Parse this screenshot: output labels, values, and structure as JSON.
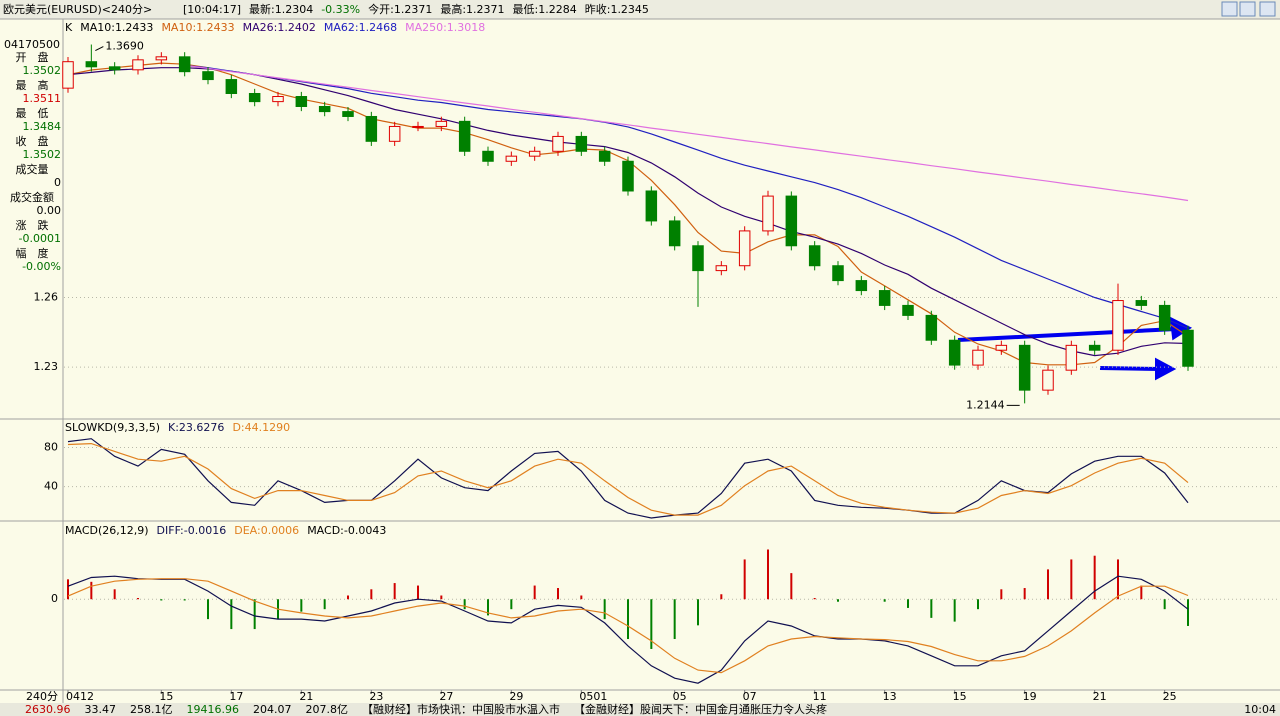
{
  "header": {
    "title": "欧元美元(EURUSD)<240分>",
    "fields": [
      "[10:04:17]",
      "最新:1.2304",
      "-0.33%",
      "今开:1.2371",
      "最高:1.2371",
      "最低:1.2284",
      "昨收:1.2345"
    ]
  },
  "side_panel": {
    "time": "04170500",
    "items": [
      {
        "label": "开　盘",
        "value": "1.3502",
        "color": "#007000"
      },
      {
        "label": "最　高",
        "value": "1.3511",
        "color": "#d00000"
      },
      {
        "label": "最　低",
        "value": "1.3484",
        "color": "#007000"
      },
      {
        "label": "收　盘",
        "value": "1.3502",
        "color": "#007000"
      },
      {
        "label": "成交量",
        "value": "0",
        "color": "#000000"
      },
      {
        "label": "成交金额",
        "value": "0.00",
        "color": "#000000"
      },
      {
        "label": "涨　跌",
        "value": "-0.0001",
        "color": "#007000"
      },
      {
        "label": "幅　度",
        "value": "-0.00%",
        "color": "#007000"
      }
    ]
  },
  "status_bar": {
    "items": [
      "2630.96",
      "33.47",
      "258.1亿",
      "19416.96",
      "204.07",
      "207.8亿",
      "【融财经】市场快讯：中国股市水温入市",
      "【金融财经】股闻天下：中国金月通胀压力令人头疼"
    ],
    "time": "10:04"
  },
  "chart_data": [
    {
      "type": "candlestick",
      "title": "K",
      "subtitle": "MA10:1.2433",
      "xlabel": "240分",
      "categories": [
        "0412",
        null,
        null,
        null,
        "15",
        null,
        null,
        "17",
        null,
        null,
        "21",
        null,
        null,
        "23",
        null,
        null,
        "27",
        null,
        null,
        "29",
        null,
        null,
        "0501",
        null,
        null,
        null,
        "05",
        null,
        null,
        "07",
        null,
        null,
        "11",
        null,
        null,
        "13",
        null,
        null,
        "15",
        null,
        null,
        "19",
        null,
        null,
        "21",
        null,
        null,
        "25",
        null
      ],
      "open": [
        1.3502,
        1.3616,
        1.3594,
        1.3581,
        1.3624,
        1.3637,
        1.3573,
        1.3539,
        1.3479,
        1.3444,
        1.3466,
        1.3423,
        1.3401,
        1.338,
        1.3273,
        1.3337,
        1.3337,
        1.3359,
        1.323,
        1.3187,
        1.3209,
        1.323,
        1.3294,
        1.323,
        1.3187,
        1.3059,
        1.293,
        1.2823,
        1.2716,
        1.2737,
        1.2887,
        1.3037,
        1.2823,
        1.2737,
        1.2673,
        1.263,
        1.2566,
        1.2523,
        1.2416,
        1.2309,
        1.2373,
        1.2394,
        1.2201,
        1.2287,
        1.2394,
        1.2373,
        1.2587,
        1.2566,
        1.2459
      ],
      "high": [
        1.3636,
        1.369,
        1.3614,
        1.3644,
        1.3657,
        1.3657,
        1.3593,
        1.3559,
        1.3499,
        1.3486,
        1.3486,
        1.3443,
        1.3421,
        1.34,
        1.3357,
        1.3357,
        1.3379,
        1.3379,
        1.325,
        1.3229,
        1.325,
        1.3314,
        1.3314,
        1.325,
        1.3207,
        1.3079,
        1.295,
        1.2843,
        1.2757,
        1.2907,
        1.306,
        1.3057,
        1.2843,
        1.2757,
        1.2693,
        1.265,
        1.2586,
        1.2543,
        1.2436,
        1.2393,
        1.2414,
        1.2414,
        1.2307,
        1.2414,
        1.2414,
        1.266,
        1.2607,
        1.2586,
        1.2479
      ],
      "low": [
        1.3482,
        1.3574,
        1.3561,
        1.3561,
        1.3604,
        1.3553,
        1.3519,
        1.3459,
        1.3424,
        1.3424,
        1.3403,
        1.3381,
        1.336,
        1.3253,
        1.3253,
        1.3317,
        1.3317,
        1.321,
        1.3167,
        1.3167,
        1.3189,
        1.321,
        1.321,
        1.3167,
        1.3039,
        1.291,
        1.2803,
        1.256,
        1.2696,
        1.2717,
        1.2867,
        1.2803,
        1.2717,
        1.2653,
        1.261,
        1.2546,
        1.2503,
        1.2396,
        1.2289,
        1.2289,
        1.2353,
        1.2144,
        1.2181,
        1.2267,
        1.2353,
        1.2353,
        1.2546,
        1.2439,
        1.2284
      ],
      "close": [
        1.3616,
        1.3594,
        1.3581,
        1.3624,
        1.3637,
        1.3573,
        1.3539,
        1.3479,
        1.3444,
        1.3466,
        1.3423,
        1.3401,
        1.338,
        1.3273,
        1.3337,
        1.3337,
        1.3359,
        1.323,
        1.3187,
        1.3209,
        1.323,
        1.3294,
        1.323,
        1.3187,
        1.3059,
        1.293,
        1.2823,
        1.2716,
        1.2737,
        1.2887,
        1.3037,
        1.2823,
        1.2737,
        1.2673,
        1.263,
        1.2566,
        1.2523,
        1.2416,
        1.2309,
        1.2373,
        1.2394,
        1.2201,
        1.2287,
        1.2394,
        1.2373,
        1.2587,
        1.2566,
        1.2459,
        1.2304
      ],
      "up_color": "#e00000",
      "down_color": "#008000",
      "series": [
        {
          "name": "MA10:1.2433",
          "color": "#d06010",
          "values": [
            1.356,
            1.358,
            1.359,
            1.36,
            1.361,
            1.3605,
            1.359,
            1.356,
            1.352,
            1.348,
            1.3455,
            1.3435,
            1.3415,
            1.337,
            1.335,
            1.333,
            1.333,
            1.331,
            1.328,
            1.3245,
            1.3215,
            1.3225,
            1.324,
            1.3235,
            1.319,
            1.3105,
            1.3,
            1.288,
            1.28,
            1.279,
            1.284,
            1.287,
            1.287,
            1.282,
            1.271,
            1.265,
            1.259,
            1.253,
            1.245,
            1.24,
            1.237,
            1.232,
            1.231,
            1.231,
            1.232,
            1.239,
            1.248,
            1.25,
            1.2433
          ]
        },
        {
          "name": "MA26:1.2402",
          "color": "#300070",
          "values": [
            1.356,
            1.357,
            1.358,
            1.3585,
            1.359,
            1.359,
            1.3585,
            1.3575,
            1.356,
            1.354,
            1.352,
            1.3495,
            1.347,
            1.344,
            1.341,
            1.339,
            1.337,
            1.3345,
            1.332,
            1.33,
            1.3285,
            1.327,
            1.326,
            1.325,
            1.3225,
            1.318,
            1.312,
            1.305,
            1.299,
            1.295,
            1.292,
            1.2885,
            1.286,
            1.283,
            1.279,
            1.274,
            1.27,
            1.264,
            1.259,
            1.254,
            1.249,
            1.244,
            1.24,
            1.237,
            1.235,
            1.236,
            1.239,
            1.2405,
            1.2402
          ]
        },
        {
          "name": "MA62:1.2468",
          "color": "#2020c0",
          "values": [
            null,
            null,
            null,
            null,
            null,
            1.36,
            1.359,
            1.3575,
            1.356,
            1.3545,
            1.353,
            1.3515,
            1.35,
            1.348,
            1.3465,
            1.345,
            1.344,
            1.3425,
            1.341,
            1.34,
            1.339,
            1.338,
            1.337,
            1.3355,
            1.3335,
            1.3305,
            1.327,
            1.3235,
            1.32,
            1.317,
            1.3145,
            1.312,
            1.3095,
            1.3065,
            1.303,
            1.299,
            1.295,
            1.2905,
            1.286,
            1.281,
            1.276,
            1.272,
            1.268,
            1.264,
            1.26,
            1.257,
            1.254,
            1.251,
            1.2468
          ]
        },
        {
          "name": "MA250:1.3018",
          "color": "#e070e0",
          "values": [
            null,
            null,
            null,
            null,
            null,
            1.36,
            1.3587,
            1.3573,
            1.356,
            1.3546,
            1.3533,
            1.3519,
            1.3506,
            1.3492,
            1.3479,
            1.3465,
            1.3452,
            1.3438,
            1.3425,
            1.3411,
            1.3398,
            1.3384,
            1.3371,
            1.3357,
            1.3344,
            1.333,
            1.3317,
            1.3303,
            1.329,
            1.3276,
            1.3263,
            1.3249,
            1.3236,
            1.3222,
            1.3209,
            1.3195,
            1.3182,
            1.3168,
            1.3155,
            1.3141,
            1.3128,
            1.3114,
            1.3101,
            1.3087,
            1.3074,
            1.306,
            1.3047,
            1.3033,
            1.3018
          ]
        }
      ],
      "annotations": [
        "1.3690",
        "1.2144"
      ],
      "ylim": [
        1.2081,
        1.3787
      ],
      "yticks": [
        1.26,
        1.23
      ],
      "grid": true
    },
    {
      "type": "line",
      "title": "SLOWKD(9,3,3,5)",
      "series": [
        {
          "name": "K:23.6276",
          "color": "#101050",
          "values": [
            86,
            89,
            71,
            61,
            78,
            73,
            46,
            24,
            21,
            46,
            36,
            24,
            26,
            26,
            46,
            68,
            49,
            39,
            36,
            56,
            74,
            76,
            56,
            26,
            13,
            8,
            11,
            13,
            33,
            64,
            68,
            56,
            26,
            21,
            19,
            18,
            16,
            13,
            13,
            26,
            46,
            36,
            34,
            53,
            66,
            71,
            71,
            54,
            23.6276
          ]
        },
        {
          "name": "D:44.1290",
          "color": "#e08020",
          "values": [
            83,
            84,
            76,
            68,
            66,
            71,
            58,
            38,
            28,
            36,
            36,
            31,
            26,
            26,
            34,
            51,
            56,
            46,
            39,
            46,
            61,
            68,
            64,
            46,
            29,
            16,
            11,
            11,
            21,
            41,
            56,
            61,
            46,
            31,
            23,
            19,
            16,
            14,
            13,
            18,
            31,
            36,
            33,
            41,
            54,
            64,
            69,
            64,
            44.129
          ]
        }
      ],
      "ylim": [
        6,
        106
      ],
      "yticks": [
        80,
        40
      ],
      "grid": true
    },
    {
      "type": "macd",
      "title": "MACD(26,12,9)",
      "series": [
        {
          "name": "DIFF:-0.0016",
          "color": "#101050",
          "values": [
            0.0021,
            0.0035,
            0.0037,
            0.0033,
            0.0032,
            0.0032,
            0.0013,
            -0.0011,
            -0.0027,
            -0.0032,
            -0.0032,
            -0.0035,
            -0.0027,
            -0.0019,
            -0.0006,
            0,
            -0.0003,
            -0.0019,
            -0.0035,
            -0.0038,
            -0.0016,
            -0.001,
            -0.0013,
            -0.0038,
            -0.0075,
            -0.0107,
            -0.0127,
            -0.0135,
            -0.0114,
            -0.0067,
            -0.0035,
            -0.0043,
            -0.0059,
            -0.0064,
            -0.0064,
            -0.0067,
            -0.0075,
            -0.0091,
            -0.0107,
            -0.0107,
            -0.0091,
            -0.0083,
            -0.0051,
            -0.0019,
            0.0013,
            0.0037,
            0.0032,
            0.0013,
            -0.0016
          ]
        },
        {
          "name": "DEA:0.0006",
          "color": "#e08020",
          "values": [
            0.0005,
            0.0021,
            0.0029,
            0.0032,
            0.0033,
            0.0033,
            0.0029,
            0.0013,
            -0.0003,
            -0.0016,
            -0.0022,
            -0.0027,
            -0.003,
            -0.0027,
            -0.0019,
            -0.0011,
            -0.0006,
            -0.0011,
            -0.0022,
            -0.003,
            -0.0027,
            -0.0019,
            -0.0016,
            -0.0022,
            -0.0043,
            -0.0067,
            -0.0095,
            -0.0114,
            -0.0118,
            -0.0099,
            -0.0075,
            -0.0064,
            -0.006,
            -0.0062,
            -0.0064,
            -0.0065,
            -0.0068,
            -0.0076,
            -0.0089,
            -0.0099,
            -0.0099,
            -0.0092,
            -0.0075,
            -0.0051,
            -0.0022,
            0.0005,
            0.0021,
            0.0021,
            0.0006
          ]
        },
        {
          "name": "MACD:-0.0043",
          "style": "bar",
          "color": "#000000",
          "up_color": "#d00000",
          "down_color": "#008000",
          "values": [
            0.0032,
            0.0028,
            0.0016,
            0.0002,
            -0.0002,
            -0.0002,
            -0.0032,
            -0.0048,
            -0.0048,
            -0.0032,
            -0.002,
            -0.0016,
            0.0006,
            0.0016,
            0.0026,
            0.0022,
            0.0006,
            -0.0016,
            -0.0026,
            -0.0016,
            0.0022,
            0.0018,
            0.0006,
            -0.0032,
            -0.0064,
            -0.008,
            -0.0064,
            -0.0042,
            0.0008,
            0.0064,
            0.008,
            0.0042,
            0.0002,
            -0.0004,
            0,
            -0.0004,
            -0.0014,
            -0.003,
            -0.0036,
            -0.0016,
            0.0016,
            0.0018,
            0.0048,
            0.0064,
            0.007,
            0.0064,
            0.0022,
            -0.0016,
            -0.0043
          ]
        }
      ],
      "ylim": [
        -0.0146,
        0.0121
      ],
      "yticks": [
        0
      ],
      "grid": true
    }
  ]
}
